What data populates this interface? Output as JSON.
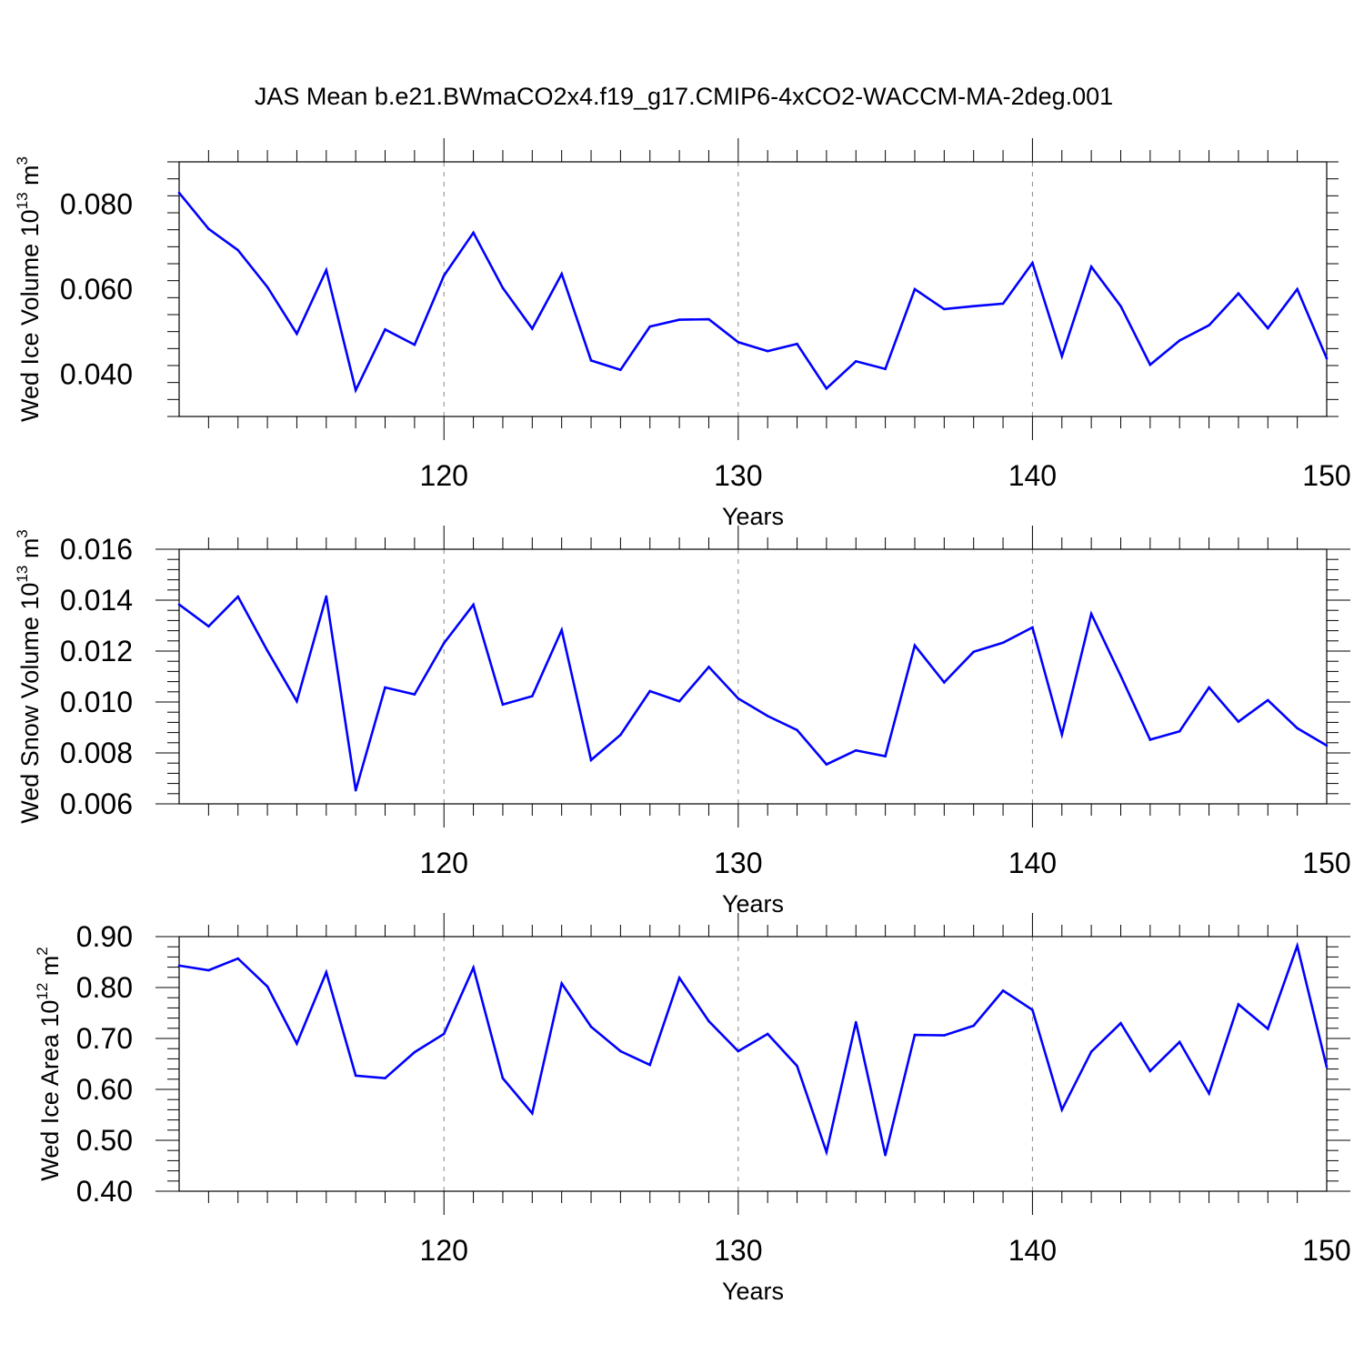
{
  "title": "JAS Mean b.e21.BWmaCO2x4.f19_g17.CMIP6-4xCO2-WACCM-MA-2deg.001",
  "chart_data": [
    {
      "type": "line",
      "ylabel": {
        "main": "Wed Ice Volume 10",
        "exp": "13",
        "unit": " m",
        "unit_exp": "3"
      },
      "xlabel": "Years",
      "xlim": [
        111,
        150
      ],
      "ylim": [
        0.03,
        0.09
      ],
      "yticks": [
        "0.040",
        "0.060",
        "0.080"
      ],
      "ytick_values": [
        0.04,
        0.06,
        0.08
      ],
      "xticks": [
        "120",
        "130",
        "140",
        "150"
      ],
      "xtick_values": [
        120,
        130,
        140,
        150
      ],
      "grid": "vertical dashed at major x ticks",
      "color": "#0000ff",
      "x": [
        111,
        112,
        113,
        114,
        115,
        116,
        117,
        118,
        119,
        120,
        121,
        122,
        123,
        124,
        125,
        126,
        127,
        128,
        129,
        130,
        131,
        132,
        133,
        134,
        135,
        136,
        137,
        138,
        139,
        140,
        141,
        142,
        143,
        144,
        145,
        146,
        147,
        148,
        149,
        150
      ],
      "values": [
        0.0827,
        0.0742,
        0.0692,
        0.0605,
        0.0495,
        0.0645,
        0.0362,
        0.0505,
        0.0469,
        0.0632,
        0.0733,
        0.0603,
        0.0507,
        0.0636,
        0.0432,
        0.041,
        0.0512,
        0.0528,
        0.0529,
        0.0475,
        0.0454,
        0.0471,
        0.0366,
        0.043,
        0.0412,
        0.06,
        0.0553,
        0.056,
        0.0566,
        0.0662,
        0.0442,
        0.0653,
        0.056,
        0.0422,
        0.0479,
        0.0515,
        0.059,
        0.0508,
        0.06,
        0.0437
      ]
    },
    {
      "type": "line",
      "ylabel": {
        "main": "Wed Snow Volume 10",
        "exp": "13",
        "unit": " m",
        "unit_exp": "3"
      },
      "xlabel": "Years",
      "xlim": [
        111,
        150
      ],
      "ylim": [
        0.006,
        0.016
      ],
      "yticks": [
        "0.006",
        "0.008",
        "0.010",
        "0.012",
        "0.014",
        "0.016"
      ],
      "ytick_values": [
        0.006,
        0.008,
        0.01,
        0.012,
        0.014,
        0.016
      ],
      "xticks": [
        "120",
        "130",
        "140",
        "150"
      ],
      "xtick_values": [
        120,
        130,
        140,
        150
      ],
      "grid": "vertical dashed at major x ticks",
      "color": "#0000ff",
      "x": [
        111,
        112,
        113,
        114,
        115,
        116,
        117,
        118,
        119,
        120,
        121,
        122,
        123,
        124,
        125,
        126,
        127,
        128,
        129,
        130,
        131,
        132,
        133,
        134,
        135,
        136,
        137,
        138,
        139,
        140,
        141,
        142,
        143,
        144,
        145,
        146,
        147,
        148,
        149,
        150
      ],
      "values": [
        0.01383,
        0.01297,
        0.01414,
        0.01201,
        0.01003,
        0.01415,
        0.00653,
        0.01057,
        0.0103,
        0.01231,
        0.01382,
        0.0099,
        0.01023,
        0.01283,
        0.00772,
        0.00871,
        0.01043,
        0.01003,
        0.01138,
        0.01014,
        0.00945,
        0.0089,
        0.00755,
        0.0081,
        0.00787,
        0.01222,
        0.01077,
        0.01197,
        0.01233,
        0.01293,
        0.00872,
        0.01346,
        0.01103,
        0.00852,
        0.00885,
        0.01057,
        0.00923,
        0.01007,
        0.00897,
        0.00829
      ]
    },
    {
      "type": "line",
      "ylabel": {
        "main": "Wed Ice Area 10",
        "exp": "12",
        "unit": " m",
        "unit_exp": "2"
      },
      "xlabel": "Years",
      "xlim": [
        111,
        150
      ],
      "ylim": [
        0.4,
        0.9
      ],
      "yticks": [
        "0.40",
        "0.50",
        "0.60",
        "0.70",
        "0.80",
        "0.90"
      ],
      "ytick_values": [
        0.4,
        0.5,
        0.6,
        0.7,
        0.8,
        0.9
      ],
      "xticks": [
        "120",
        "130",
        "140",
        "150"
      ],
      "xtick_values": [
        120,
        130,
        140,
        150
      ],
      "grid": "vertical dashed at major x ticks",
      "color": "#0000ff",
      "x": [
        111,
        112,
        113,
        114,
        115,
        116,
        117,
        118,
        119,
        120,
        121,
        122,
        123,
        124,
        125,
        126,
        127,
        128,
        129,
        130,
        131,
        132,
        133,
        134,
        135,
        136,
        137,
        138,
        139,
        140,
        141,
        142,
        143,
        144,
        145,
        146,
        147,
        148,
        149,
        150
      ],
      "values": [
        0.843,
        0.834,
        0.857,
        0.802,
        0.69,
        0.83,
        0.627,
        0.622,
        0.673,
        0.709,
        0.839,
        0.622,
        0.553,
        0.808,
        0.723,
        0.675,
        0.648,
        0.819,
        0.734,
        0.675,
        0.709,
        0.646,
        0.477,
        0.732,
        0.471,
        0.707,
        0.706,
        0.725,
        0.794,
        0.756,
        0.56,
        0.674,
        0.73,
        0.636,
        0.693,
        0.592,
        0.767,
        0.719,
        0.882,
        0.644
      ]
    }
  ]
}
